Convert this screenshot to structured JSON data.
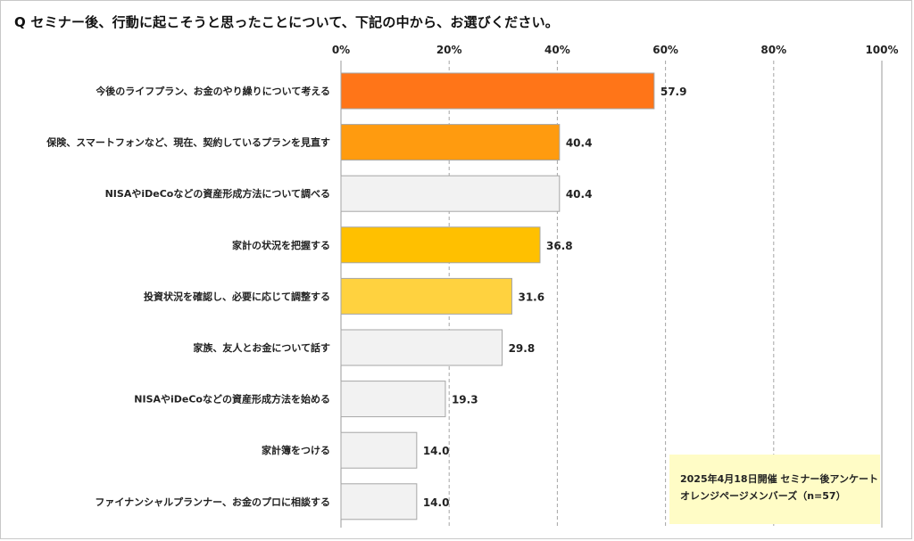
{
  "title": "Q セミナー後、行動に起こそうと思ったことについて、下記の中から、お選びください。",
  "note": {
    "line1": "2025年4月18日開催 セミナー後アンケート",
    "line2": "オレンジページメンバーズ（n=57）"
  },
  "chart_data": {
    "type": "bar",
    "orientation": "horizontal",
    "categories": [
      "今後のライフプラン、お金のやり繰りについて考える",
      "保険、スマートフォンなど、現在、契約しているプランを見直す",
      "NISAやiDeCoなどの資産形成方法について調べる",
      "家計の状況を把握する",
      "投資状況を確認し、必要に応じて調整する",
      "家族、友人とお金について話す",
      "NISAやiDeCoなどの資産形成方法を始める",
      "家計簿をつける",
      "ファイナンシャルプランナー、お金のプロに相談する"
    ],
    "values": [
      57.9,
      40.4,
      40.4,
      36.8,
      31.6,
      29.8,
      19.3,
      14.0,
      14.0
    ],
    "value_labels": [
      "57.9",
      "40.4",
      "40.4",
      "36.8",
      "31.6",
      "29.8",
      "19.3",
      "14.0",
      "14.0"
    ],
    "colors": [
      "#ff7518",
      "#ff9b0f",
      "#f2f2f2",
      "#ffc000",
      "#ffd23f",
      "#f2f2f2",
      "#f2f2f2",
      "#f2f2f2",
      "#f2f2f2"
    ],
    "xlim": [
      0,
      100
    ],
    "xticks": [
      0,
      20,
      40,
      60,
      80,
      100
    ],
    "xtick_labels": [
      "0%",
      "20%",
      "40%",
      "60%",
      "80%",
      "100%"
    ],
    "grid": true,
    "axis_position": "top"
  }
}
